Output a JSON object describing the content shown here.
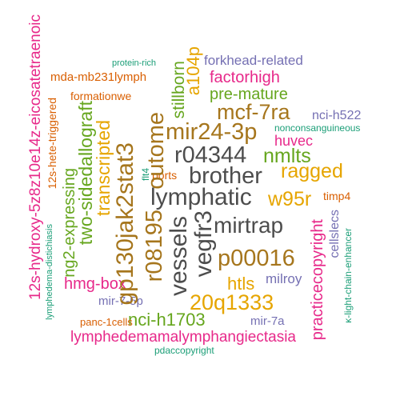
{
  "words": {
    "lymphatic": "lymphatic",
    "brother": "brother",
    "r04344": "r04344",
    "mir24_3p": "mir24-3p",
    "mcf_7ra": "mcf-7ra",
    "mirtrap": "mirtrap",
    "vessels": "vessels",
    "vegfr3": "vegfr3",
    "gp130jak2stat3": "gp130jak2stat3",
    "r08195": "r08195",
    "outome": "outome",
    "p00016": "p00016",
    "q20q1333": "20q1333",
    "ragged": "ragged",
    "w95r": "w95r",
    "nmlts": "nmlts",
    "transcripted": "transcripted",
    "two_sidedallograft": "two-sidedallograft",
    "ng2_expressing": "ng2-expressing",
    "eicosa": "12s-hydroxy-5z8z10e14z-eicosatetraenoic",
    "hete": "12s-hete-triggered",
    "lymphedemamalymphangiectasia": "lymphedemamalymphangiectasia",
    "nci_h1703": "nci-h1703",
    "hmg_box": "hmg-box",
    "htls": "htls",
    "practicecopyright": "practicecopyright",
    "cellslecs": "cellslecs",
    "kappa_light": "κ-light-chain-enhancer",
    "milroy": "milroy",
    "mir_7a": "mir-7a",
    "mir_7_5p": "mir-7-5p",
    "panc_1cells": "panc-1cells",
    "pdaccopyright": "pdaccopyright",
    "lymphedema_distichiasis": "lymphedema-distichiasis",
    "huvec": "huvec",
    "nonconsanguineous": "nonconsanguineous",
    "nci_h522": "nci-h522",
    "pre_mature": "pre-mature",
    "factorhigh": "factorhigh",
    "forkhead_related": "forkhead-related",
    "a104p": "a104p",
    "stillborn": "stillborn",
    "formationwe": "formationwe",
    "mda_mb231lymph": "mda-mb231lymph",
    "protein_rich": "protein-rich",
    "ports": "ports",
    "flt4": "flt4",
    "timp4": "timp4"
  },
  "colors": {
    "dark": "#4d4d4d",
    "gold": "#e6a500",
    "brown": "#a6761d",
    "green": "#66a61e",
    "pink": "#e7298a",
    "purple": "#7570b3",
    "teal": "#1b9e77",
    "orange": "#d95f02"
  }
}
